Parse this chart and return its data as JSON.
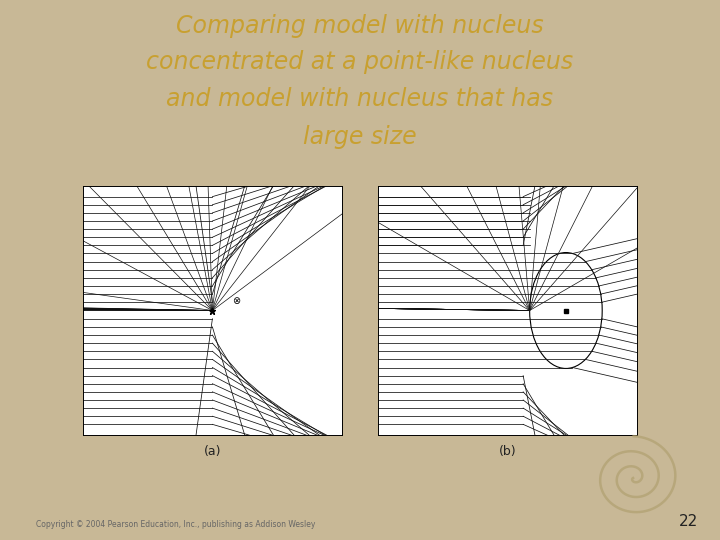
{
  "bg_color": "#c8b896",
  "white_panel_color": "#ffffff",
  "title_color": "#c8a030",
  "title_line1": "Comparing model with nucleus",
  "title_line2": "concentrated at a point-like nucleus",
  "title_line3": "and model with nucleus that has",
  "title_line4": "large size",
  "label_a": "(a)",
  "label_b": "(b)",
  "copyright": "Copyright © 2004 Pearson Education, Inc., publishing as Addison Wesley",
  "page_num": "22",
  "fig_width": 7.2,
  "fig_height": 5.4,
  "line_color": "#111111",
  "nucleus_color": "#111111"
}
